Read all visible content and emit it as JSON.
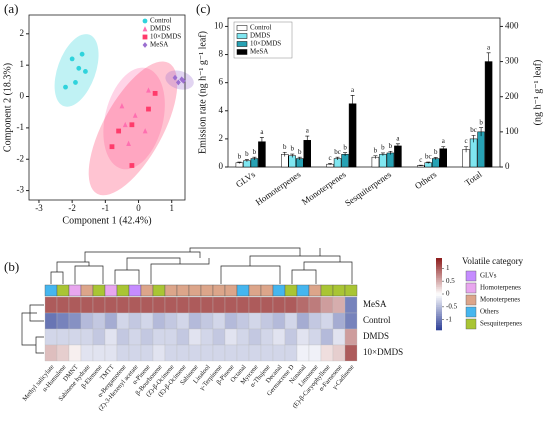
{
  "chart_data": [
    {
      "type": "scatter",
      "label": "(a)",
      "xlabel": "Component 1 (42.4%)",
      "ylabel": "Component 2 (18.3%)",
      "xlim": [
        -3.3,
        1.4
      ],
      "ylim": [
        -3.3,
        2.6
      ],
      "xticks": [
        -3,
        -2,
        -1,
        0,
        1
      ],
      "yticks": [
        -3,
        -2,
        -1,
        0,
        1,
        2
      ],
      "legend": "upper right",
      "series": [
        {
          "name": "Control",
          "color": "#2fd3dc",
          "marker": "circle",
          "x": [
            -2.0,
            -1.7,
            -1.8,
            -1.6,
            -2.2,
            -1.9
          ],
          "y": [
            1.2,
            1.35,
            0.9,
            0.8,
            0.3,
            0.45
          ]
        },
        {
          "name": "DMDS",
          "color": "#ff6fb0",
          "marker": "triangle",
          "x": [
            -0.5,
            -0.4,
            -0.1,
            0.2,
            -0.3,
            0.3
          ],
          "y": [
            -0.3,
            -0.9,
            -0.6,
            -1.1,
            -1.5,
            0.2
          ]
        },
        {
          "name": "10×DMDS",
          "color": "#ff3b6b",
          "marker": "square",
          "x": [
            -0.8,
            -0.2,
            0.3,
            -0.6,
            0.5,
            -0.2
          ],
          "y": [
            -1.6,
            -0.9,
            -0.4,
            -1.1,
            0.1,
            -2.2
          ]
        },
        {
          "name": "MeSA",
          "color": "#9b6fd0",
          "marker": "diamond",
          "x": [
            1.1,
            1.3,
            1.2,
            1.35
          ],
          "y": [
            0.6,
            0.55,
            0.45,
            0.5
          ]
        }
      ]
    },
    {
      "type": "bar",
      "label": "(c)",
      "ylabel": "Emission rate (ng h⁻¹ g⁻¹ leaf)",
      "y2label": "(ng h⁻¹ g⁻¹ leaf)",
      "categories": [
        "GLVs",
        "Homoterpenes",
        "Monoterpenes",
        "Sesquiterpenes",
        "Others"
      ],
      "y2_categories": [
        "Total"
      ],
      "ylim": [
        0,
        10.6
      ],
      "yticks": [
        0,
        2,
        4,
        6,
        8,
        10
      ],
      "y2lim": [
        0,
        424
      ],
      "y2ticks": [
        0,
        100,
        200,
        300,
        400
      ],
      "legend": "upper left",
      "series": [
        {
          "name": "Control",
          "color": "#ffffff",
          "values": [
            0.3,
            0.9,
            0.2,
            0.7,
            0.1
          ],
          "errors": [
            0.05,
            0.15,
            0.05,
            0.1,
            0.03
          ],
          "labels": [
            "b",
            "b",
            "c",
            "b",
            "c"
          ],
          "y2_values": [
            50
          ],
          "y2_errors": [
            8
          ],
          "y2_labels": [
            "c"
          ]
        },
        {
          "name": "DMDS",
          "color": "#7fe6f0",
          "values": [
            0.45,
            0.8,
            0.6,
            0.9,
            0.3
          ],
          "errors": [
            0.08,
            0.12,
            0.1,
            0.1,
            0.05
          ],
          "labels": [
            "b",
            "b",
            "bc",
            "b",
            "bc"
          ],
          "y2_values": [
            80
          ],
          "y2_errors": [
            10
          ],
          "y2_labels": [
            "bc"
          ]
        },
        {
          "name": "10×DMDS",
          "color": "#27a2b4",
          "values": [
            0.6,
            0.6,
            0.9,
            1.0,
            0.6
          ],
          "errors": [
            0.1,
            0.1,
            0.12,
            0.12,
            0.08
          ],
          "labels": [
            "b",
            "b",
            "b",
            "b",
            "b"
          ],
          "y2_values": [
            100
          ],
          "y2_errors": [
            12
          ],
          "y2_labels": [
            "b"
          ]
        },
        {
          "name": "MeSA",
          "color": "#000000",
          "values": [
            1.8,
            1.9,
            4.5,
            1.5,
            1.3
          ],
          "errors": [
            0.3,
            0.3,
            0.6,
            0.15,
            0.15
          ],
          "labels": [
            "a",
            "a",
            "a",
            "a",
            "a"
          ],
          "y2_values": [
            300
          ],
          "y2_errors": [
            25
          ],
          "y2_labels": [
            "a"
          ]
        }
      ]
    },
    {
      "type": "heatmap",
      "label": "(b)",
      "rows": [
        "MeSA",
        "Control",
        "DMDS",
        "10×DMDS"
      ],
      "columns": [
        "Methyl salicylate",
        "α-Humulene",
        "DMNT",
        "Sabinene hydrate",
        "β-Elemene",
        "TMTT",
        "α-Bergamotene",
        "(Z)-3-Hexenyl acetate",
        "α-Pinene",
        "β-Bourbonene",
        "(Z)-β-Ocimene",
        "(E)-β-Ocimene",
        "Sabinene",
        "Linalool",
        "γ-Terpinene",
        "β-Pinene",
        "Octanal",
        "Myrcene",
        "α-Thujene",
        "Decanal",
        "Germacrene D",
        "Nonanal",
        "Limonene",
        "(E)-β-Caryophyllene",
        "α-Farnesene",
        "γ-Cadinene"
      ],
      "column_categories": [
        "Others",
        "Sesquiterpenes",
        "Homoterpenes",
        "Monoterpenes",
        "Sesquiterpenes",
        "Homoterpenes",
        "Sesquiterpenes",
        "GLVs",
        "Monoterpenes",
        "Sesquiterpenes",
        "Monoterpenes",
        "Monoterpenes",
        "Monoterpenes",
        "Monoterpenes",
        "Monoterpenes",
        "Monoterpenes",
        "Others",
        "Monoterpenes",
        "Monoterpenes",
        "Others",
        "Sesquiterpenes",
        "Others",
        "Monoterpenes",
        "Sesquiterpenes",
        "Sesquiterpenes",
        "Sesquiterpenes"
      ],
      "values": [
        [
          1.0,
          1.0,
          1.0,
          1.0,
          1.0,
          1.0,
          1.0,
          1.0,
          1.0,
          1.0,
          1.0,
          1.0,
          1.0,
          1.0,
          1.0,
          1.0,
          1.0,
          1.0,
          1.0,
          1.0,
          1.0,
          0.9,
          0.8,
          0.6,
          0.5,
          -0.9
        ],
        [
          -1.0,
          -0.9,
          -0.8,
          -0.5,
          -0.4,
          -0.6,
          -0.3,
          -0.4,
          -0.3,
          -0.5,
          -0.4,
          -0.3,
          -0.5,
          -0.4,
          -0.3,
          -0.5,
          -0.4,
          -0.3,
          -0.4,
          -0.5,
          -0.3,
          -0.6,
          -0.4,
          -0.3,
          -0.6,
          -0.9
        ],
        [
          -0.3,
          -0.3,
          -0.3,
          -0.3,
          -0.4,
          -0.2,
          -0.4,
          -0.3,
          -0.4,
          -0.3,
          -0.3,
          -0.4,
          -0.2,
          -0.3,
          -0.4,
          -0.2,
          -0.3,
          -0.4,
          -0.3,
          -0.2,
          -0.4,
          -0.2,
          -0.3,
          -0.5,
          -0.2,
          0.6
        ],
        [
          0.4,
          0.3,
          0.1,
          -0.2,
          -0.2,
          -0.2,
          -0.3,
          -0.3,
          -0.3,
          -0.2,
          -0.3,
          -0.3,
          -0.3,
          -0.3,
          -0.3,
          -0.3,
          -0.3,
          -0.3,
          -0.3,
          -0.3,
          -0.3,
          -0.1,
          -0.1,
          0.2,
          0.3,
          1.0
        ]
      ],
      "clim": [
        -1.4,
        1.4
      ],
      "cticks": [
        1,
        0.5,
        0,
        -0.5,
        -1
      ],
      "legend_title": "Volatile category",
      "categories": [
        {
          "name": "GLVs",
          "color": "#c58cff"
        },
        {
          "name": "Homoterpenes",
          "color": "#e8a6ee"
        },
        {
          "name": "Monoterpenes",
          "color": "#dca58a"
        },
        {
          "name": "Others",
          "color": "#45b6ef"
        },
        {
          "name": "Sesquiterpenes",
          "color": "#a9c534"
        }
      ]
    }
  ]
}
